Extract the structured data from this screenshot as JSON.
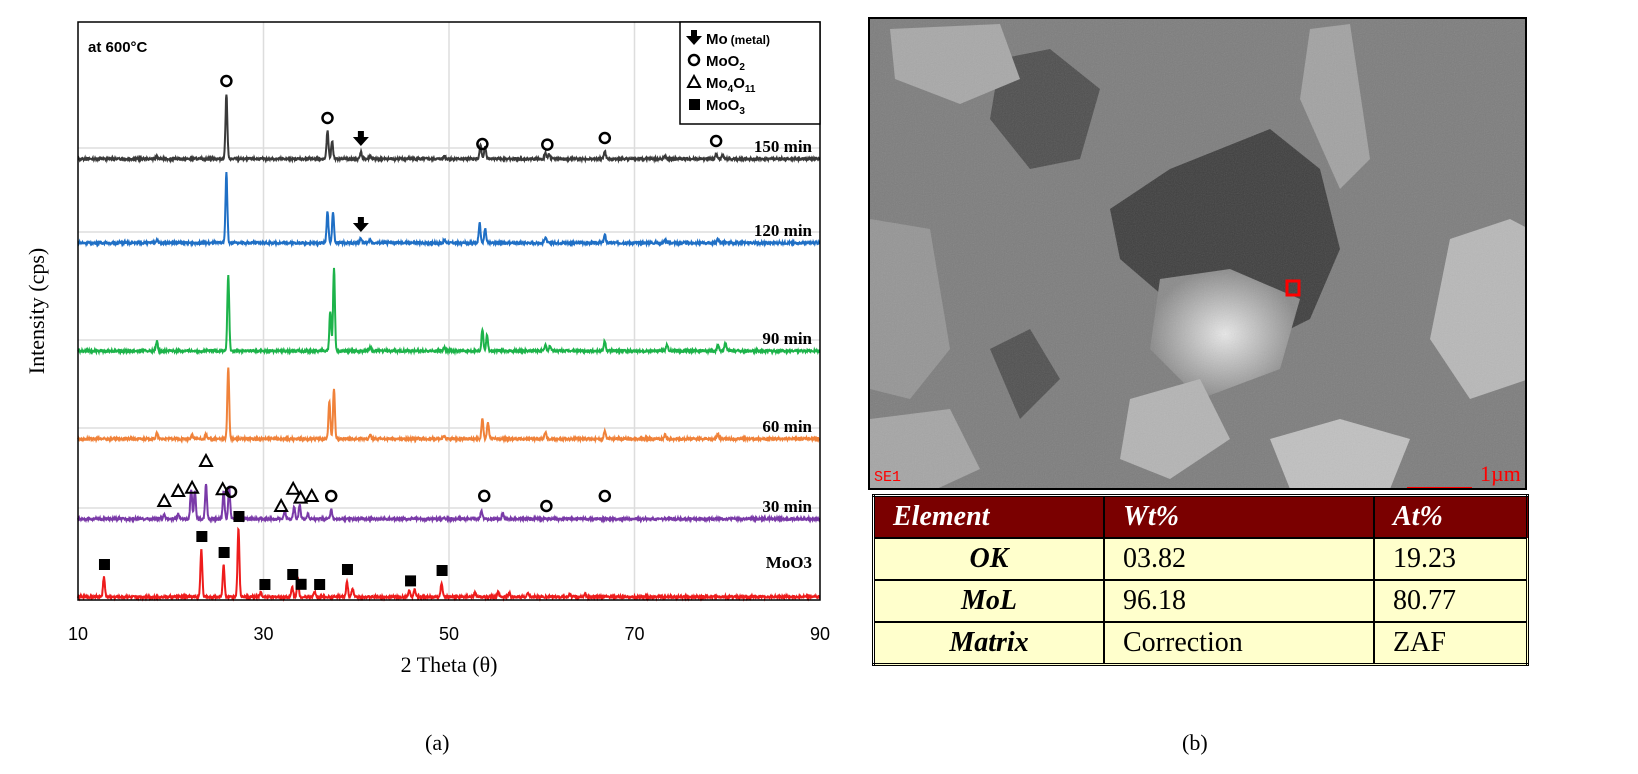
{
  "panel_a": {
    "caption": "(a)",
    "chart_data": {
      "type": "line",
      "title": "",
      "annotation": "at 600°C",
      "xlabel": "2 Theta (θ)",
      "ylabel": "Intensity (cps)",
      "xlim": [
        10,
        90
      ],
      "xticks": [
        "10",
        "30",
        "50",
        "70",
        "90"
      ],
      "grid": true,
      "y_scale": "stacked, offset, arbitrary units (no tick labels)",
      "legend_position": "top-right",
      "legend": [
        {
          "symbol": "arrow-down",
          "label": "Mo",
          "sub": "(metal)"
        },
        {
          "symbol": "open-circle",
          "label": "MoO",
          "sub": "2"
        },
        {
          "symbol": "open-triangle",
          "label": "Mo",
          "sub": "4",
          "label2": "O",
          "sub2": "11"
        },
        {
          "symbol": "filled-square",
          "label": "MoO",
          "sub": "3"
        }
      ],
      "series": [
        {
          "name": "150 min",
          "color": "#3a3a3a",
          "peaks": [
            [
              18.5,
              3
            ],
            [
              26.0,
              65
            ],
            [
              36.9,
              28
            ],
            [
              37.4,
              18
            ],
            [
              40.5,
              7
            ],
            [
              41.5,
              3
            ],
            [
              49.5,
              3
            ],
            [
              53.4,
              14
            ],
            [
              53.9,
              12
            ],
            [
              60.4,
              6
            ],
            [
              60.8,
              5
            ],
            [
              66.8,
              8
            ],
            [
              73.3,
              3
            ],
            [
              78.8,
              5
            ],
            [
              79.5,
              4
            ]
          ],
          "markers": [
            [
              "open-circle",
              26.0
            ],
            [
              "open-circle",
              36.9
            ],
            [
              "arrow-down",
              40.5
            ],
            [
              "open-circle",
              53.6
            ],
            [
              "open-circle",
              60.6
            ],
            [
              "open-circle",
              66.8
            ],
            [
              "open-circle",
              78.8
            ]
          ]
        },
        {
          "name": "120 min",
          "color": "#1f6fc5",
          "peaks": [
            [
              18.5,
              3
            ],
            [
              26.0,
              70
            ],
            [
              36.9,
              31
            ],
            [
              37.5,
              31
            ],
            [
              40.5,
              5
            ],
            [
              41.5,
              3
            ],
            [
              49.5,
              3
            ],
            [
              53.3,
              20
            ],
            [
              53.9,
              14
            ],
            [
              60.4,
              6
            ],
            [
              66.8,
              8
            ],
            [
              73.3,
              3
            ],
            [
              79,
              4
            ]
          ],
          "markers": [
            [
              "arrow-down",
              40.5
            ]
          ]
        },
        {
          "name": "90 min",
          "color": "#1db34a",
          "peaks": [
            [
              18.5,
              10
            ],
            [
              26.2,
              76
            ],
            [
              37.2,
              40
            ],
            [
              37.6,
              82
            ],
            [
              41.5,
              4
            ],
            [
              49.5,
              3
            ],
            [
              53.6,
              22
            ],
            [
              54.1,
              16
            ],
            [
              60.4,
              6
            ],
            [
              60.9,
              5
            ],
            [
              66.8,
              10
            ],
            [
              73.5,
              6
            ],
            [
              79,
              6
            ],
            [
              79.8,
              8
            ]
          ],
          "markers": []
        },
        {
          "name": "60 min",
          "color": "#f0823a",
          "peaks": [
            [
              18.5,
              6
            ],
            [
              22.3,
              4
            ],
            [
              23.8,
              4
            ],
            [
              26.2,
              72
            ],
            [
              37.1,
              38
            ],
            [
              37.6,
              50
            ],
            [
              41.5,
              4
            ],
            [
              49.5,
              3
            ],
            [
              53.6,
              20
            ],
            [
              54.2,
              16
            ],
            [
              60.4,
              7
            ],
            [
              66.8,
              8
            ],
            [
              73.3,
              4
            ],
            [
              79,
              5
            ]
          ],
          "markers": []
        },
        {
          "name": "30 min",
          "color": "#7a3aa8",
          "peaks": [
            [
              19.3,
              5
            ],
            [
              20.8,
              5
            ],
            [
              22.2,
              30
            ],
            [
              22.6,
              28
            ],
            [
              23.8,
              35
            ],
            [
              25.7,
              28
            ],
            [
              26.3,
              32
            ],
            [
              32.3,
              8
            ],
            [
              33.3,
              12
            ],
            [
              33.9,
              14
            ],
            [
              34.8,
              5
            ],
            [
              37.3,
              10
            ],
            [
              53.5,
              8
            ],
            [
              55.8,
              6
            ]
          ],
          "markers": [
            [
              "open-triangle",
              19.3
            ],
            [
              "open-triangle",
              20.8
            ],
            [
              "open-triangle",
              22.3
            ],
            [
              "open-triangle",
              23.8
            ],
            [
              "open-triangle",
              25.6
            ],
            [
              "open-circle",
              26.5
            ],
            [
              "open-triangle",
              31.9
            ],
            [
              "open-triangle",
              33.2
            ],
            [
              "open-triangle",
              34.0
            ],
            [
              "open-triangle",
              35.2
            ],
            [
              "open-circle",
              37.3
            ],
            [
              "open-circle",
              53.8
            ],
            [
              "open-circle",
              60.5
            ],
            [
              "open-circle",
              66.8
            ]
          ]
        },
        {
          "name": "MoO3",
          "color": "#ee1c1c",
          "peaks": [
            [
              12.8,
              20
            ],
            [
              23.3,
              48
            ],
            [
              25.7,
              32
            ],
            [
              27.3,
              68
            ],
            [
              29.7,
              5
            ],
            [
              33.1,
              10
            ],
            [
              33.7,
              18
            ],
            [
              35.5,
              5
            ],
            [
              39.0,
              15
            ],
            [
              39.6,
              8
            ],
            [
              45.7,
              6
            ],
            [
              46.3,
              7
            ],
            [
              49.2,
              14
            ],
            [
              52.8,
              4
            ],
            [
              55.3,
              5
            ],
            [
              56.5,
              4
            ],
            [
              58.5,
              4
            ],
            [
              63.0,
              3
            ],
            [
              64.7,
              3
            ]
          ],
          "markers": [
            [
              "filled-square",
              12.8
            ],
            [
              "filled-square",
              23.3
            ],
            [
              "filled-square",
              25.7
            ],
            [
              "filled-square",
              27.3
            ],
            [
              "filled-square",
              30.1
            ],
            [
              "filled-square",
              33.1
            ],
            [
              "filled-square",
              34.0
            ],
            [
              "filled-square",
              36.0
            ],
            [
              "filled-square",
              39.0
            ],
            [
              "filled-square",
              45.8
            ],
            [
              "filled-square",
              49.2
            ]
          ]
        }
      ]
    }
  },
  "panel_b": {
    "caption": "(b)",
    "sem": {
      "detector_label": "SE1",
      "scale_bar": "1µm",
      "scale_color": "#ff0000"
    },
    "eds_table": {
      "headers": [
        "Element",
        "Wt%",
        "At%"
      ],
      "rows": [
        [
          "OK",
          "03.82",
          "19.23"
        ],
        [
          "MoL",
          "96.18",
          "80.77"
        ],
        [
          "Matrix",
          "Correction",
          "ZAF"
        ]
      ],
      "header_bg": "#7a0000",
      "cell_bg": "#ffffcc"
    }
  }
}
